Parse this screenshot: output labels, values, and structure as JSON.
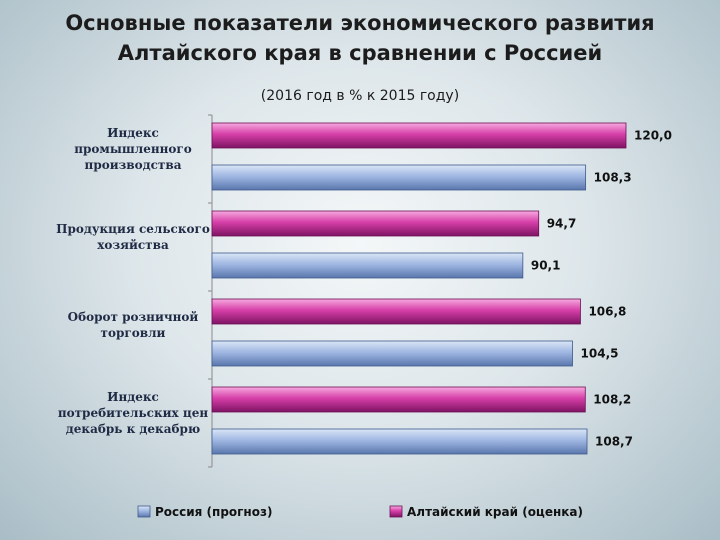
{
  "title_line1": "Основные показатели экономического развития",
  "title_line2": "Алтайского края в сравнении с Россией",
  "subtitle": "(2016 год в % к 2015 году)",
  "colors": {
    "russia": "#8fa9d8",
    "altai": "#d63fa8"
  },
  "chart_data": {
    "type": "bar",
    "orientation": "horizontal",
    "categories": [
      [
        "Индекс",
        "промышленного",
        "производства"
      ],
      [
        "Продукция сельского",
        "хозяйства"
      ],
      [
        "Оборот розничной",
        "торговли"
      ],
      [
        "Индекс",
        "потребительских цен",
        "декабрь к декабрю"
      ]
    ],
    "series": [
      {
        "name": "Россия (прогноз)",
        "values": [
          108.3,
          90.1,
          104.5,
          108.7
        ],
        "labels": [
          "108,3",
          "90,1",
          "104,5",
          "108,7"
        ]
      },
      {
        "name": "Алтайский край (оценка)",
        "values": [
          120.0,
          94.7,
          106.8,
          108.2
        ],
        "labels": [
          "120,0",
          "94,7",
          "106,8",
          "108,2"
        ]
      }
    ],
    "legend_position": "bottom",
    "grid": false
  }
}
